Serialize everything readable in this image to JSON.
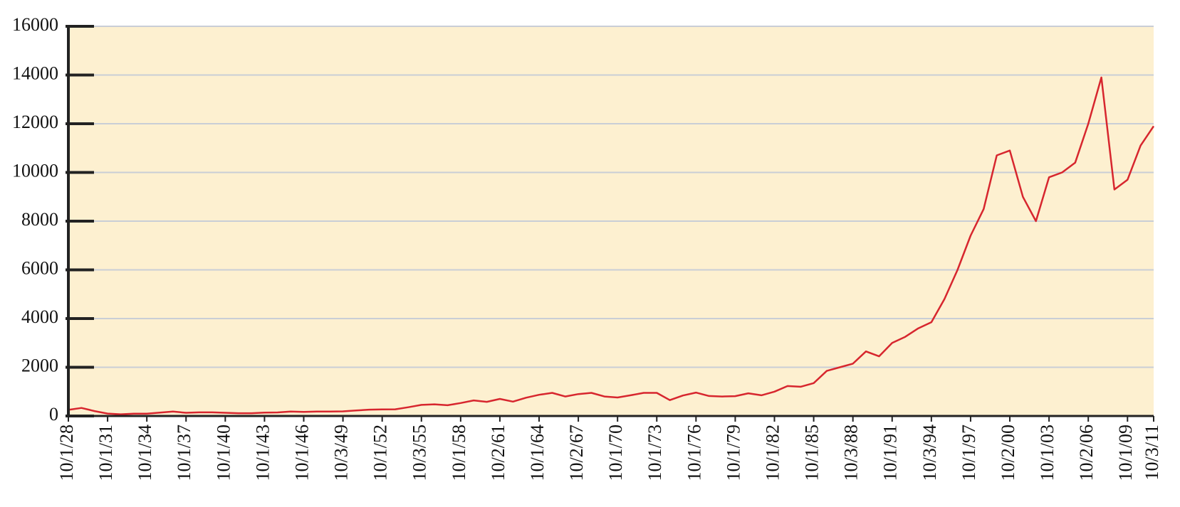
{
  "chart_data": {
    "type": "line",
    "categories": [
      "10/1/28",
      null,
      null,
      "10/1/31",
      null,
      null,
      "10/1/34",
      null,
      null,
      "10/1/37",
      null,
      null,
      "10/1/40",
      null,
      null,
      "10/1/43",
      null,
      null,
      "10/1/46",
      null,
      null,
      "10/3/49",
      null,
      null,
      "10/1/52",
      null,
      null,
      "10/3/55",
      null,
      null,
      "10/1/58",
      null,
      null,
      "10/2/61",
      null,
      null,
      "10/1/64",
      null,
      null,
      "10/2/67",
      null,
      null,
      "10/1/70",
      null,
      null,
      "10/1/73",
      null,
      null,
      "10/1/76",
      null,
      null,
      "10/1/79",
      null,
      null,
      "10/1/82",
      null,
      null,
      "10/1/85",
      null,
      null,
      "10/3/88",
      null,
      null,
      "10/1/91",
      null,
      null,
      "10/3/94",
      null,
      null,
      "10/1/97",
      null,
      null,
      "10/2/00",
      null,
      null,
      "10/1/03",
      null,
      null,
      "10/2/06",
      null,
      null,
      "10/1/09",
      null,
      "10/3/11"
    ],
    "series": [
      {
        "color": "#d7262e",
        "values": [
          250,
          330,
          200,
          100,
          70,
          95,
          95,
          140,
          180,
          130,
          150,
          150,
          130,
          115,
          115,
          140,
          145,
          185,
          165,
          180,
          185,
          190,
          225,
          260,
          270,
          275,
          360,
          455,
          480,
          440,
          530,
          640,
          580,
          700,
          590,
          750,
          870,
          950,
          800,
          900,
          950,
          800,
          760,
          850,
          950,
          950,
          650,
          840,
          960,
          820,
          800,
          815,
          930,
          850,
          1000,
          1230,
          1200,
          1350,
          1850,
          2000,
          2150,
          2650,
          2450,
          3000,
          3250,
          3600,
          3850,
          4800,
          6000,
          7400,
          8500,
          10700,
          10900,
          9000,
          8000,
          9800,
          10000,
          10400,
          12000,
          13900,
          9300,
          9700,
          11100,
          11900
        ]
      }
    ],
    "ylim": [
      0,
      16000
    ],
    "yticks": [
      0,
      2000,
      4000,
      6000,
      8000,
      10000,
      12000,
      14000,
      16000
    ],
    "grid": true
  }
}
